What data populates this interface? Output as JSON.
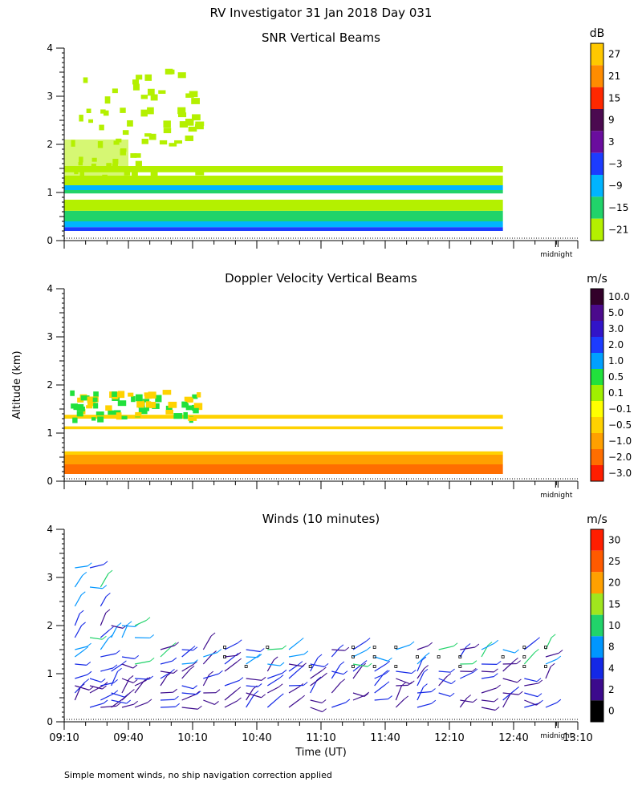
{
  "figure_title": "RV Investigator  31 Jan 2018 Day 031",
  "ylabel": "Altitude (km)",
  "xlabel": "Time (UT)",
  "footnote": "Simple moment winds, no ship navigation correction applied",
  "midnight_label": "midnight",
  "x_tick_labels": [
    "09:10",
    "09:40",
    "10:10",
    "10:40",
    "11:10",
    "11:40",
    "12:10",
    "12:40",
    "13:10"
  ],
  "y_tick_labels": [
    "0",
    "1",
    "2",
    "3",
    "4"
  ],
  "chart_data": [
    {
      "type": "heatmap",
      "title": "SNR Vertical Beams",
      "units": "dB",
      "ylim": [
        0,
        4
      ],
      "xlim": [
        "09:10",
        "13:10"
      ],
      "colorbar": {
        "labels": [
          "27",
          "21",
          "15",
          "9",
          "3",
          "−3",
          "−9",
          "−15",
          "−21"
        ],
        "colors": [
          "#ffc800",
          "#ff8c00",
          "#ff2800",
          "#4b0a50",
          "#6a0d9e",
          "#1c3cff",
          "#00b4ff",
          "#21d36a",
          "#b4f000"
        ]
      },
      "layers": [
        {
          "from": 0.2,
          "to": 0.28,
          "color": "#1c3cff"
        },
        {
          "from": 0.28,
          "to": 0.4,
          "color": "#00b4ff"
        },
        {
          "from": 0.4,
          "to": 0.62,
          "color": "#21d36a"
        },
        {
          "from": 0.62,
          "to": 0.85,
          "color": "#b4f000"
        },
        {
          "from": 0.98,
          "to": 1.05,
          "color": "#21d36a"
        },
        {
          "from": 1.05,
          "to": 1.15,
          "color": "#00b4ff"
        },
        {
          "from": 1.15,
          "to": 1.35,
          "color": "#b4f000"
        },
        {
          "from": 1.42,
          "to": 1.55,
          "color": "#b4f000"
        }
      ]
    },
    {
      "type": "heatmap",
      "title": "Doppler Velocity Vertical Beams",
      "units": "m/s",
      "ylim": [
        0,
        4
      ],
      "xlim": [
        "09:10",
        "13:10"
      ],
      "colorbar": {
        "labels": [
          "10.0",
          "5.0",
          "3.0",
          "2.0",
          "1.0",
          "0.5",
          "0.1",
          "−0.1",
          "−0.5",
          "−1.0",
          "−2.0",
          "−3.0"
        ],
        "colors": [
          "#32002a",
          "#4b0a8c",
          "#3214c8",
          "#1c3cff",
          "#00a0ff",
          "#21e13c",
          "#a0f000",
          "#ffff00",
          "#ffd200",
          "#ffa000",
          "#ff6e00",
          "#ff1e00"
        ]
      },
      "layers": [
        {
          "from": 0.15,
          "to": 0.35,
          "color": "#ff6e00"
        },
        {
          "from": 0.35,
          "to": 0.55,
          "color": "#ffa000"
        },
        {
          "from": 0.55,
          "to": 0.62,
          "color": "#ffd200"
        },
        {
          "from": 1.08,
          "to": 1.14,
          "color": "#ffd200"
        },
        {
          "from": 1.3,
          "to": 1.38,
          "color": "#ffd200"
        }
      ]
    },
    {
      "type": "scatter",
      "title": "Winds (10 minutes)",
      "units": "m/s",
      "ylim": [
        0,
        4
      ],
      "xlim": [
        "09:10",
        "13:10"
      ],
      "colorbar": {
        "labels": [
          "30",
          "25",
          "20",
          "15",
          "10",
          "8",
          "4",
          "2",
          "0"
        ],
        "colors": [
          "#ff1e00",
          "#ff5a00",
          "#ffa000",
          "#a0e61e",
          "#21d36a",
          "#0096ff",
          "#1428e6",
          "#3c0a8c",
          "#000000"
        ]
      },
      "times_min_after_0910": [
        5,
        12,
        17,
        22,
        27,
        33,
        45,
        55,
        65,
        75,
        85,
        95,
        105,
        115,
        125,
        135,
        145,
        155,
        165,
        175,
        185,
        195,
        205,
        215,
        225
      ],
      "altitudes_km": [
        0.3,
        0.45,
        0.6,
        0.75,
        0.9,
        1.05,
        1.2,
        1.35,
        1.5,
        1.75,
        2.0,
        2.4,
        2.8,
        3.2
      ]
    }
  ]
}
